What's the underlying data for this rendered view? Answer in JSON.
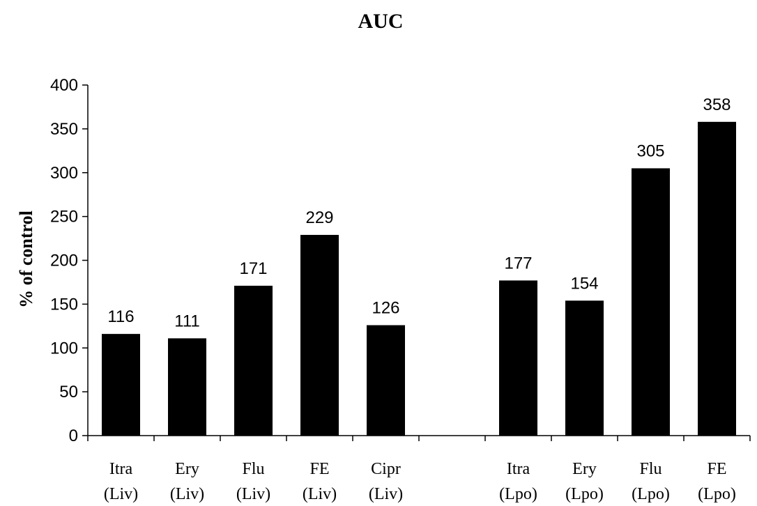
{
  "chart_data": {
    "type": "bar",
    "title": "AUC",
    "xlabel": "",
    "ylabel": "% of control",
    "ylim": [
      0,
      400
    ],
    "yticks": [
      0,
      50,
      100,
      150,
      200,
      250,
      300,
      350,
      400
    ],
    "grid": false,
    "categories": [
      [
        "Itra",
        "(Liv)"
      ],
      [
        "Ery",
        "(Liv)"
      ],
      [
        "Flu",
        "(Liv)"
      ],
      [
        "FE",
        "(Liv)"
      ],
      [
        "Cipr",
        "(Liv)"
      ],
      [
        "",
        ""
      ],
      [
        "Itra",
        "(Lpo)"
      ],
      [
        "Ery",
        "(Lpo)"
      ],
      [
        "Flu",
        "(Lpo)"
      ],
      [
        "FE",
        "(Lpo)"
      ]
    ],
    "values": [
      116,
      111,
      171,
      229,
      126,
      null,
      177,
      154,
      305,
      358
    ],
    "data_labels": [
      "116",
      "111",
      "171",
      "229",
      "126",
      "",
      "177",
      "154",
      "305",
      "358"
    ],
    "bar_color": "#000000"
  }
}
